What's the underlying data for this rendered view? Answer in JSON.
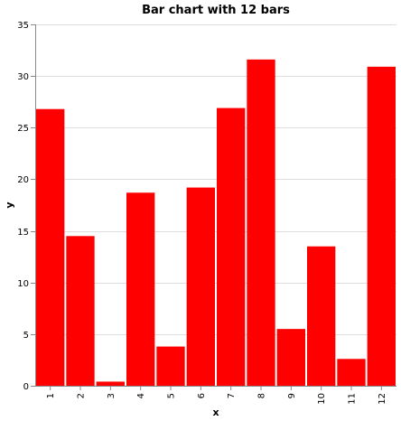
{
  "chart_data": {
    "type": "bar",
    "title": "Bar chart with 12 bars",
    "xlabel": "x",
    "ylabel": "y",
    "categories": [
      "1",
      "2",
      "3",
      "4",
      "5",
      "6",
      "7",
      "8",
      "9",
      "10",
      "11",
      "12"
    ],
    "values": [
      26.8,
      14.5,
      0.4,
      18.7,
      3.8,
      19.2,
      26.9,
      31.6,
      5.5,
      13.5,
      2.6,
      30.9
    ],
    "ylim": [
      0,
      35
    ],
    "yticks": [
      0,
      5,
      10,
      15,
      20,
      25,
      30,
      35
    ],
    "grid": true,
    "bar_color": "#ff0000"
  }
}
